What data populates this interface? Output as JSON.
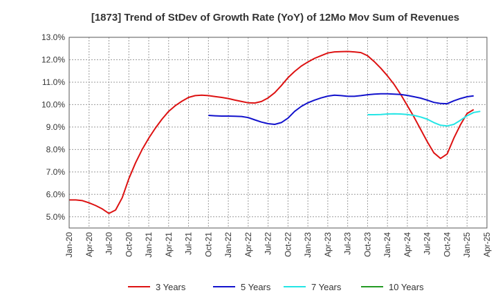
{
  "chart_data": {
    "type": "line",
    "title": "[1873]  Trend of StDev of Growth Rate (YoY) of 12Mo Mov Sum of Revenues",
    "xlabel": "",
    "ylabel": "",
    "ylim": [
      4.5,
      13.0
    ],
    "y_ticks": [
      "5.0%",
      "6.0%",
      "7.0%",
      "8.0%",
      "9.0%",
      "10.0%",
      "11.0%",
      "12.0%",
      "13.0%"
    ],
    "x_ticks": [
      "Jan-20",
      "Apr-20",
      "Jul-20",
      "Oct-20",
      "Jan-21",
      "Apr-21",
      "Jul-21",
      "Oct-21",
      "Jan-22",
      "Apr-22",
      "Jul-22",
      "Oct-22",
      "Jan-23",
      "Apr-23",
      "Jul-23",
      "Oct-23",
      "Jan-24",
      "Apr-24",
      "Jul-24",
      "Oct-24",
      "Jan-25",
      "Apr-25"
    ],
    "legend_position": "bottom",
    "series": [
      {
        "name": "3 Years",
        "color": "#dd1111",
        "start_index": 0,
        "values": [
          5.75,
          5.75,
          5.72,
          5.62,
          5.5,
          5.35,
          5.15,
          5.3,
          5.85,
          6.7,
          7.4,
          8.0,
          8.5,
          8.95,
          9.35,
          9.7,
          9.95,
          10.15,
          10.32,
          10.4,
          10.42,
          10.4,
          10.36,
          10.32,
          10.27,
          10.2,
          10.14,
          10.08,
          10.07,
          10.14,
          10.3,
          10.53,
          10.85,
          11.2,
          11.48,
          11.72,
          11.9,
          12.06,
          12.18,
          12.3,
          12.35,
          12.36,
          12.37,
          12.35,
          12.32,
          12.18,
          11.92,
          11.62,
          11.28,
          10.9,
          10.45,
          9.95,
          9.45,
          8.9,
          8.35,
          7.85,
          7.6,
          7.8,
          8.5,
          9.1,
          9.6,
          9.78
        ]
      },
      {
        "name": "5 Years",
        "color": "#1111cc",
        "start_index": 21,
        "values": [
          9.52,
          9.5,
          9.49,
          9.49,
          9.48,
          9.47,
          9.42,
          9.32,
          9.22,
          9.15,
          9.12,
          9.2,
          9.4,
          9.7,
          9.92,
          10.08,
          10.2,
          10.3,
          10.38,
          10.42,
          10.4,
          10.37,
          10.37,
          10.4,
          10.44,
          10.47,
          10.48,
          10.48,
          10.47,
          10.45,
          10.41,
          10.35,
          10.29,
          10.2,
          10.1,
          10.05,
          10.04,
          10.17,
          10.27,
          10.35,
          10.39
        ]
      },
      {
        "name": "7 Years",
        "color": "#22e5e5",
        "start_index": 45,
        "values": [
          9.55,
          9.55,
          9.56,
          9.58,
          9.59,
          9.58,
          9.56,
          9.52,
          9.45,
          9.35,
          9.2,
          9.08,
          9.05,
          9.12,
          9.3,
          9.5,
          9.65,
          9.7
        ]
      },
      {
        "name": "10 Years",
        "color": "#229922",
        "start_index": 0,
        "values": []
      }
    ]
  }
}
